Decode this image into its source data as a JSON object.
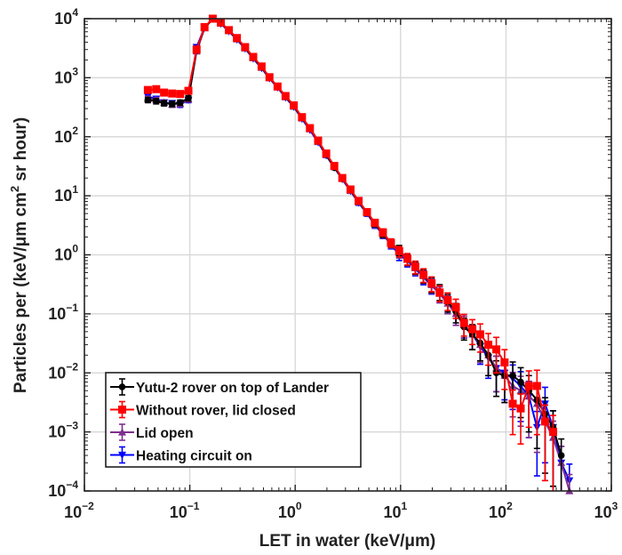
{
  "chart_data": {
    "type": "line",
    "xscale": "log",
    "yscale": "log",
    "xlim": [
      0.01,
      1000
    ],
    "ylim": [
      0.0001,
      10000
    ],
    "xlabel": "LET in water (keV/μm)",
    "ylabel_parts": [
      "Particles per (keV/μm cm",
      "2",
      " sr hour)"
    ],
    "xticks": [
      {
        "base": "10",
        "exp": "−2",
        "value": 0.01
      },
      {
        "base": "10",
        "exp": "−1",
        "value": 0.1
      },
      {
        "base": "10",
        "exp": "0",
        "value": 1
      },
      {
        "base": "10",
        "exp": "1",
        "value": 10
      },
      {
        "base": "10",
        "exp": "2",
        "value": 100
      },
      {
        "base": "10",
        "exp": "3",
        "value": 1000
      }
    ],
    "yticks": [
      {
        "base": "10",
        "exp": "−4",
        "value": 0.0001
      },
      {
        "base": "10",
        "exp": "−3",
        "value": 0.001
      },
      {
        "base": "10",
        "exp": "−2",
        "value": 0.01
      },
      {
        "base": "10",
        "exp": "−1",
        "value": 0.1
      },
      {
        "base": "10",
        "exp": "0",
        "value": 1
      },
      {
        "base": "10",
        "exp": "1",
        "value": 10
      },
      {
        "base": "10",
        "exp": "2",
        "value": 100
      },
      {
        "base": "10",
        "exp": "3",
        "value": 1000
      },
      {
        "base": "10",
        "exp": "4",
        "value": 10000
      }
    ],
    "grid": true,
    "legend_position": "bottom-left",
    "x": [
      0.04,
      0.048,
      0.057,
      0.068,
      0.081,
      0.097,
      0.116,
      0.138,
      0.165,
      0.197,
      0.235,
      0.28,
      0.335,
      0.4,
      0.48,
      0.57,
      0.68,
      0.81,
      0.97,
      1.16,
      1.38,
      1.65,
      1.97,
      2.35,
      2.8,
      3.35,
      4.0,
      4.8,
      5.7,
      6.8,
      8.1,
      9.7,
      11.6,
      13.8,
      16.5,
      19.7,
      23.5,
      28,
      33.5,
      40,
      48,
      57,
      68,
      81,
      97,
      116,
      138,
      165,
      197,
      235,
      280,
      335,
      400
    ],
    "rel_err": [
      0.1,
      0.1,
      0.1,
      0.1,
      0.1,
      0.1,
      0.05,
      0.04,
      0.03,
      0.03,
      0.03,
      0.03,
      0.03,
      0.03,
      0.03,
      0.03,
      0.03,
      0.04,
      0.04,
      0.05,
      0.05,
      0.05,
      0.06,
      0.06,
      0.07,
      0.08,
      0.09,
      0.1,
      0.12,
      0.14,
      0.16,
      0.2,
      0.22,
      0.24,
      0.26,
      0.28,
      0.3,
      0.33,
      0.36,
      0.4,
      0.45,
      0.5,
      0.55,
      0.6,
      0.65,
      0.7,
      0.75,
      0.8,
      0.85,
      0.9,
      0.9,
      0.9,
      0.9
    ],
    "series": [
      {
        "name": "Yutu-2 rover on top of Lander",
        "color": "#000000",
        "marker": "circle",
        "values": [
          420,
          400,
          370,
          360,
          380,
          450,
          2900,
          7000,
          10000,
          8400,
          6300,
          4600,
          3200,
          2200,
          1500,
          1000,
          700,
          480,
          330,
          210,
          140,
          85,
          50,
          30,
          20,
          12.5,
          8,
          5.2,
          3.4,
          2.3,
          1.6,
          1.2,
          0.85,
          0.62,
          0.45,
          0.32,
          0.24,
          0.16,
          0.11,
          0.06,
          0.045,
          0.032,
          0.02,
          0.01,
          0.009,
          0.009,
          0.007,
          0.005,
          0.0035,
          0.002,
          0.0012,
          0.0004,
          null
        ]
      },
      {
        "name": "Without rover, lid closed",
        "color": "#ff0000",
        "marker": "square",
        "values": [
          620,
          640,
          560,
          540,
          530,
          600,
          3000,
          7200,
          10000,
          8600,
          6400,
          4700,
          3300,
          2250,
          1550,
          1020,
          710,
          490,
          340,
          215,
          140,
          86,
          52,
          32,
          20,
          12.8,
          8.2,
          5.3,
          3.5,
          2.4,
          1.6,
          1.15,
          0.86,
          0.63,
          0.46,
          0.33,
          0.23,
          0.17,
          0.13,
          0.07,
          0.055,
          0.045,
          0.03,
          0.025,
          0.015,
          0.003,
          0.0025,
          0.006,
          0.006,
          0.0015,
          0.001,
          null,
          null
        ]
      },
      {
        "name": "Lid open",
        "color": "#7e2f8e",
        "marker": "triangle-up",
        "values": [
          440,
          420,
          380,
          350,
          360,
          430,
          2800,
          6900,
          9800,
          8300,
          6200,
          4500,
          3150,
          2150,
          1480,
          990,
          690,
          470,
          325,
          205,
          135,
          82,
          49,
          31,
          19.5,
          12.2,
          7.8,
          5.1,
          3.3,
          2.25,
          1.55,
          1.1,
          0.83,
          0.6,
          0.44,
          0.31,
          0.22,
          0.15,
          0.1,
          0.065,
          0.045,
          0.03,
          0.02,
          0.012,
          0.009,
          0.006,
          0.005,
          0.004,
          0.003,
          0.0015,
          0.0008,
          0.0003,
          0.0001
        ]
      },
      {
        "name": "Heating circuit on",
        "color": "#0000ff",
        "marker": "triangle-down",
        "values": [
          480,
          440,
          380,
          370,
          350,
          420,
          3300,
          7100,
          9900,
          8200,
          6100,
          4400,
          3100,
          2100,
          1450,
          970,
          680,
          460,
          320,
          200,
          130,
          80,
          48,
          30,
          19,
          12,
          7.6,
          5,
          3.2,
          2.2,
          1.5,
          1.0,
          0.8,
          0.58,
          0.42,
          0.3,
          0.22,
          0.15,
          0.1,
          0.065,
          0.045,
          0.028,
          0.018,
          0.012,
          0.01,
          0.008,
          0.006,
          0.004,
          0.0012,
          0.003,
          0.0012,
          0.0003,
          0.00015
        ]
      }
    ]
  }
}
